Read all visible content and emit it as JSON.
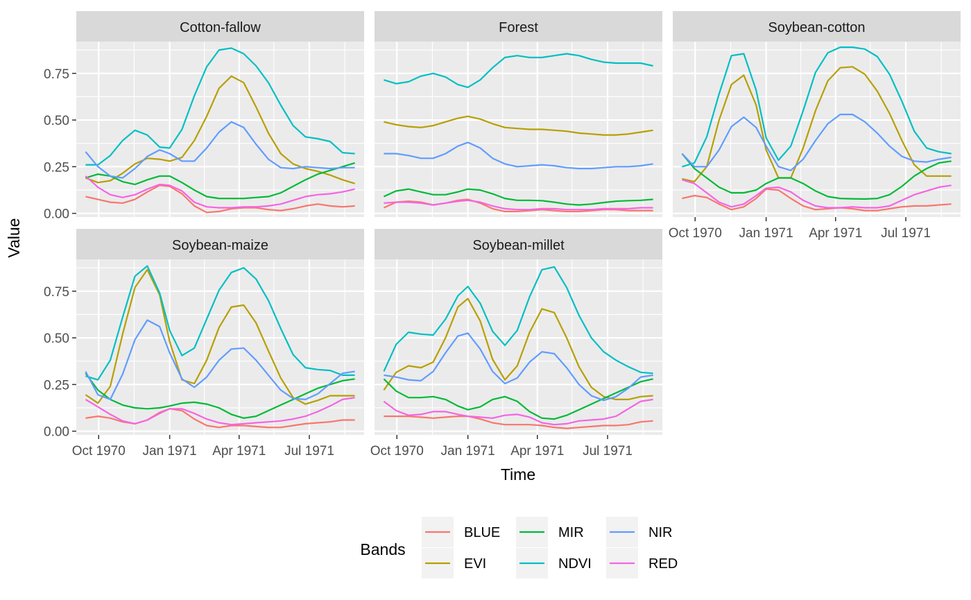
{
  "chart_data": {
    "type": "line",
    "xlabel": "Time",
    "ylabel": "Value",
    "x_tick_labels": [
      "Oct 1970",
      "Jan 1971",
      "Apr 1971",
      "Jul 1971"
    ],
    "y_tick_labels": [
      "0.00",
      "0.25",
      "0.50",
      "0.75"
    ],
    "ylim": [
      -0.02,
      0.92
    ],
    "grid": true,
    "legend": {
      "title": "Bands",
      "position": "bottom",
      "entries": [
        {
          "name": "BLUE",
          "color": "#F8766D"
        },
        {
          "name": "EVI",
          "color": "#B79F00"
        },
        {
          "name": "MIR",
          "color": "#00BA38"
        },
        {
          "name": "NDVI",
          "color": "#00BFC4"
        },
        {
          "name": "NIR",
          "color": "#619CFF"
        },
        {
          "name": "RED",
          "color": "#F564E3"
        }
      ]
    },
    "x_dates": [
      "1970-09-14",
      "1970-09-30",
      "1970-10-16",
      "1970-11-01",
      "1970-11-17",
      "1970-12-03",
      "1970-12-19",
      "1971-01-01",
      "1971-01-17",
      "1971-02-02",
      "1971-02-18",
      "1971-03-06",
      "1971-03-22",
      "1971-04-07",
      "1971-04-23",
      "1971-05-09",
      "1971-05-25",
      "1971-06-10",
      "1971-06-26",
      "1971-07-12",
      "1971-07-28",
      "1971-08-13",
      "1971-08-29"
    ],
    "panels": [
      {
        "title": "Cotton-fallow",
        "series": [
          {
            "name": "BLUE",
            "values": [
              0.09,
              0.075,
              0.06,
              0.055,
              0.075,
              0.115,
              0.15,
              0.145,
              0.105,
              0.04,
              0.005,
              0.01,
              0.025,
              0.03,
              0.03,
              0.02,
              0.015,
              0.025,
              0.04,
              0.05,
              0.04,
              0.035,
              0.04
            ]
          },
          {
            "name": "EVI",
            "values": [
              0.19,
              0.165,
              0.175,
              0.215,
              0.265,
              0.295,
              0.29,
              0.28,
              0.3,
              0.39,
              0.52,
              0.67,
              0.735,
              0.7,
              0.57,
              0.43,
              0.32,
              0.265,
              0.24,
              0.225,
              0.205,
              0.18,
              0.16
            ]
          },
          {
            "name": "MIR",
            "values": [
              0.19,
              0.21,
              0.2,
              0.17,
              0.155,
              0.18,
              0.2,
              0.2,
              0.165,
              0.125,
              0.09,
              0.08,
              0.08,
              0.08,
              0.085,
              0.09,
              0.11,
              0.145,
              0.18,
              0.21,
              0.23,
              0.25,
              0.27
            ]
          },
          {
            "name": "NDVI",
            "values": [
              0.26,
              0.26,
              0.31,
              0.39,
              0.445,
              0.42,
              0.355,
              0.35,
              0.45,
              0.63,
              0.785,
              0.875,
              0.885,
              0.855,
              0.79,
              0.7,
              0.58,
              0.47,
              0.41,
              0.4,
              0.385,
              0.325,
              0.32
            ]
          },
          {
            "name": "NIR",
            "values": [
              0.33,
              0.25,
              0.2,
              0.19,
              0.24,
              0.305,
              0.34,
              0.32,
              0.28,
              0.28,
              0.35,
              0.435,
              0.49,
              0.46,
              0.37,
              0.29,
              0.245,
              0.24,
              0.25,
              0.245,
              0.24,
              0.245,
              0.245
            ]
          },
          {
            "name": "RED",
            "values": [
              0.2,
              0.14,
              0.1,
              0.085,
              0.1,
              0.13,
              0.155,
              0.15,
              0.12,
              0.06,
              0.035,
              0.03,
              0.03,
              0.035,
              0.035,
              0.04,
              0.05,
              0.07,
              0.09,
              0.1,
              0.105,
              0.115,
              0.13
            ]
          }
        ]
      },
      {
        "title": "Forest",
        "series": [
          {
            "name": "BLUE",
            "values": [
              0.03,
              0.06,
              0.065,
              0.06,
              0.045,
              0.055,
              0.07,
              0.075,
              0.055,
              0.025,
              0.01,
              0.01,
              0.015,
              0.02,
              0.015,
              0.01,
              0.01,
              0.015,
              0.02,
              0.02,
              0.015,
              0.015,
              0.015
            ]
          },
          {
            "name": "EVI",
            "values": [
              0.49,
              0.475,
              0.465,
              0.46,
              0.47,
              0.49,
              0.51,
              0.52,
              0.505,
              0.48,
              0.46,
              0.455,
              0.45,
              0.45,
              0.445,
              0.44,
              0.43,
              0.425,
              0.42,
              0.42,
              0.425,
              0.435,
              0.445
            ]
          },
          {
            "name": "MIR",
            "values": [
              0.09,
              0.12,
              0.13,
              0.115,
              0.1,
              0.1,
              0.115,
              0.13,
              0.125,
              0.105,
              0.08,
              0.07,
              0.07,
              0.068,
              0.06,
              0.05,
              0.045,
              0.05,
              0.058,
              0.065,
              0.068,
              0.07,
              0.075
            ]
          },
          {
            "name": "NDVI",
            "values": [
              0.715,
              0.695,
              0.705,
              0.735,
              0.75,
              0.73,
              0.69,
              0.675,
              0.715,
              0.78,
              0.835,
              0.845,
              0.835,
              0.835,
              0.845,
              0.855,
              0.845,
              0.825,
              0.81,
              0.805,
              0.805,
              0.805,
              0.79
            ]
          },
          {
            "name": "NIR",
            "values": [
              0.32,
              0.32,
              0.31,
              0.295,
              0.295,
              0.32,
              0.36,
              0.38,
              0.35,
              0.295,
              0.265,
              0.25,
              0.255,
              0.26,
              0.255,
              0.245,
              0.24,
              0.24,
              0.245,
              0.25,
              0.25,
              0.255,
              0.265
            ]
          },
          {
            "name": "RED",
            "values": [
              0.055,
              0.06,
              0.06,
              0.055,
              0.045,
              0.055,
              0.065,
              0.07,
              0.06,
              0.04,
              0.025,
              0.02,
              0.02,
              0.025,
              0.025,
              0.02,
              0.02,
              0.02,
              0.025,
              0.025,
              0.025,
              0.03,
              0.03
            ]
          }
        ]
      },
      {
        "title": "Soybean-cotton",
        "series": [
          {
            "name": "BLUE",
            "values": [
              0.08,
              0.095,
              0.085,
              0.05,
              0.02,
              0.035,
              0.08,
              0.13,
              0.125,
              0.08,
              0.04,
              0.02,
              0.025,
              0.03,
              0.025,
              0.015,
              0.015,
              0.025,
              0.035,
              0.04,
              0.04,
              0.045,
              0.05
            ]
          },
          {
            "name": "EVI",
            "values": [
              0.185,
              0.17,
              0.25,
              0.5,
              0.69,
              0.74,
              0.58,
              0.34,
              0.19,
              0.19,
              0.35,
              0.55,
              0.71,
              0.78,
              0.785,
              0.745,
              0.655,
              0.535,
              0.39,
              0.26,
              0.2,
              0.2,
              0.2
            ]
          },
          {
            "name": "MIR",
            "values": [
              0.32,
              0.24,
              0.19,
              0.14,
              0.11,
              0.11,
              0.125,
              0.16,
              0.19,
              0.19,
              0.16,
              0.12,
              0.09,
              0.08,
              0.078,
              0.077,
              0.08,
              0.1,
              0.145,
              0.2,
              0.24,
              0.27,
              0.28
            ]
          },
          {
            "name": "NDVI",
            "values": [
              0.25,
              0.27,
              0.41,
              0.64,
              0.845,
              0.855,
              0.66,
              0.405,
              0.285,
              0.36,
              0.55,
              0.755,
              0.86,
              0.89,
              0.89,
              0.88,
              0.84,
              0.745,
              0.6,
              0.44,
              0.35,
              0.33,
              0.32
            ]
          },
          {
            "name": "NIR",
            "values": [
              0.32,
              0.25,
              0.25,
              0.34,
              0.465,
              0.515,
              0.46,
              0.36,
              0.25,
              0.23,
              0.29,
              0.39,
              0.48,
              0.53,
              0.53,
              0.49,
              0.43,
              0.36,
              0.305,
              0.28,
              0.275,
              0.29,
              0.3
            ]
          },
          {
            "name": "RED",
            "values": [
              0.18,
              0.16,
              0.11,
              0.06,
              0.035,
              0.05,
              0.095,
              0.135,
              0.14,
              0.115,
              0.07,
              0.04,
              0.03,
              0.03,
              0.035,
              0.03,
              0.03,
              0.04,
              0.07,
              0.1,
              0.12,
              0.14,
              0.15
            ]
          }
        ]
      },
      {
        "title": "Soybean-maize",
        "series": [
          {
            "name": "BLUE",
            "values": [
              0.07,
              0.08,
              0.07,
              0.05,
              0.04,
              0.06,
              0.1,
              0.12,
              0.11,
              0.065,
              0.03,
              0.02,
              0.03,
              0.03,
              0.025,
              0.02,
              0.02,
              0.03,
              0.04,
              0.045,
              0.05,
              0.06,
              0.06
            ]
          },
          {
            "name": "EVI",
            "values": [
              0.195,
              0.15,
              0.24,
              0.52,
              0.77,
              0.865,
              0.73,
              0.48,
              0.275,
              0.255,
              0.38,
              0.555,
              0.665,
              0.675,
              0.58,
              0.43,
              0.285,
              0.18,
              0.145,
              0.165,
              0.19,
              0.19,
              0.19
            ]
          },
          {
            "name": "MIR",
            "values": [
              0.31,
              0.22,
              0.17,
              0.14,
              0.125,
              0.12,
              0.125,
              0.135,
              0.15,
              0.155,
              0.145,
              0.125,
              0.09,
              0.07,
              0.08,
              0.11,
              0.14,
              0.17,
              0.2,
              0.23,
              0.25,
              0.27,
              0.28
            ]
          },
          {
            "name": "NDVI",
            "values": [
              0.295,
              0.275,
              0.38,
              0.61,
              0.83,
              0.885,
              0.74,
              0.54,
              0.405,
              0.445,
              0.6,
              0.755,
              0.85,
              0.875,
              0.815,
              0.7,
              0.55,
              0.41,
              0.34,
              0.33,
              0.325,
              0.3,
              0.3
            ]
          },
          {
            "name": "NIR",
            "values": [
              0.32,
              0.195,
              0.17,
              0.305,
              0.49,
              0.595,
              0.56,
              0.42,
              0.28,
              0.235,
              0.29,
              0.38,
              0.44,
              0.445,
              0.38,
              0.3,
              0.22,
              0.175,
              0.17,
              0.2,
              0.255,
              0.31,
              0.32
            ]
          },
          {
            "name": "RED",
            "values": [
              0.17,
              0.13,
              0.09,
              0.055,
              0.04,
              0.06,
              0.095,
              0.12,
              0.12,
              0.095,
              0.065,
              0.045,
              0.035,
              0.04,
              0.045,
              0.05,
              0.055,
              0.065,
              0.08,
              0.105,
              0.135,
              0.17,
              0.18
            ]
          }
        ]
      },
      {
        "title": "Soybean-millet",
        "series": [
          {
            "name": "BLUE",
            "values": [
              0.08,
              0.08,
              0.08,
              0.075,
              0.07,
              0.075,
              0.08,
              0.08,
              0.065,
              0.045,
              0.035,
              0.035,
              0.035,
              0.03,
              0.02,
              0.015,
              0.02,
              0.025,
              0.03,
              0.03,
              0.035,
              0.05,
              0.055
            ]
          },
          {
            "name": "EVI",
            "values": [
              0.22,
              0.315,
              0.35,
              0.34,
              0.37,
              0.5,
              0.665,
              0.71,
              0.59,
              0.385,
              0.275,
              0.35,
              0.53,
              0.655,
              0.635,
              0.5,
              0.345,
              0.235,
              0.185,
              0.17,
              0.17,
              0.185,
              0.19
            ]
          },
          {
            "name": "MIR",
            "values": [
              0.28,
              0.215,
              0.18,
              0.18,
              0.185,
              0.17,
              0.135,
              0.115,
              0.13,
              0.17,
              0.185,
              0.16,
              0.105,
              0.07,
              0.065,
              0.085,
              0.115,
              0.145,
              0.175,
              0.205,
              0.235,
              0.265,
              0.28
            ]
          },
          {
            "name": "NDVI",
            "values": [
              0.32,
              0.465,
              0.53,
              0.52,
              0.515,
              0.6,
              0.725,
              0.775,
              0.685,
              0.535,
              0.46,
              0.54,
              0.72,
              0.865,
              0.88,
              0.77,
              0.62,
              0.5,
              0.425,
              0.38,
              0.345,
              0.315,
              0.31
            ]
          },
          {
            "name": "NIR",
            "values": [
              0.3,
              0.29,
              0.275,
              0.27,
              0.32,
              0.42,
              0.51,
              0.525,
              0.44,
              0.32,
              0.255,
              0.285,
              0.37,
              0.425,
              0.415,
              0.34,
              0.25,
              0.19,
              0.165,
              0.185,
              0.23,
              0.29,
              0.3
            ]
          },
          {
            "name": "RED",
            "values": [
              0.16,
              0.11,
              0.085,
              0.09,
              0.105,
              0.105,
              0.09,
              0.08,
              0.075,
              0.07,
              0.085,
              0.09,
              0.075,
              0.045,
              0.035,
              0.04,
              0.055,
              0.06,
              0.065,
              0.08,
              0.12,
              0.16,
              0.17
            ]
          }
        ]
      }
    ]
  }
}
